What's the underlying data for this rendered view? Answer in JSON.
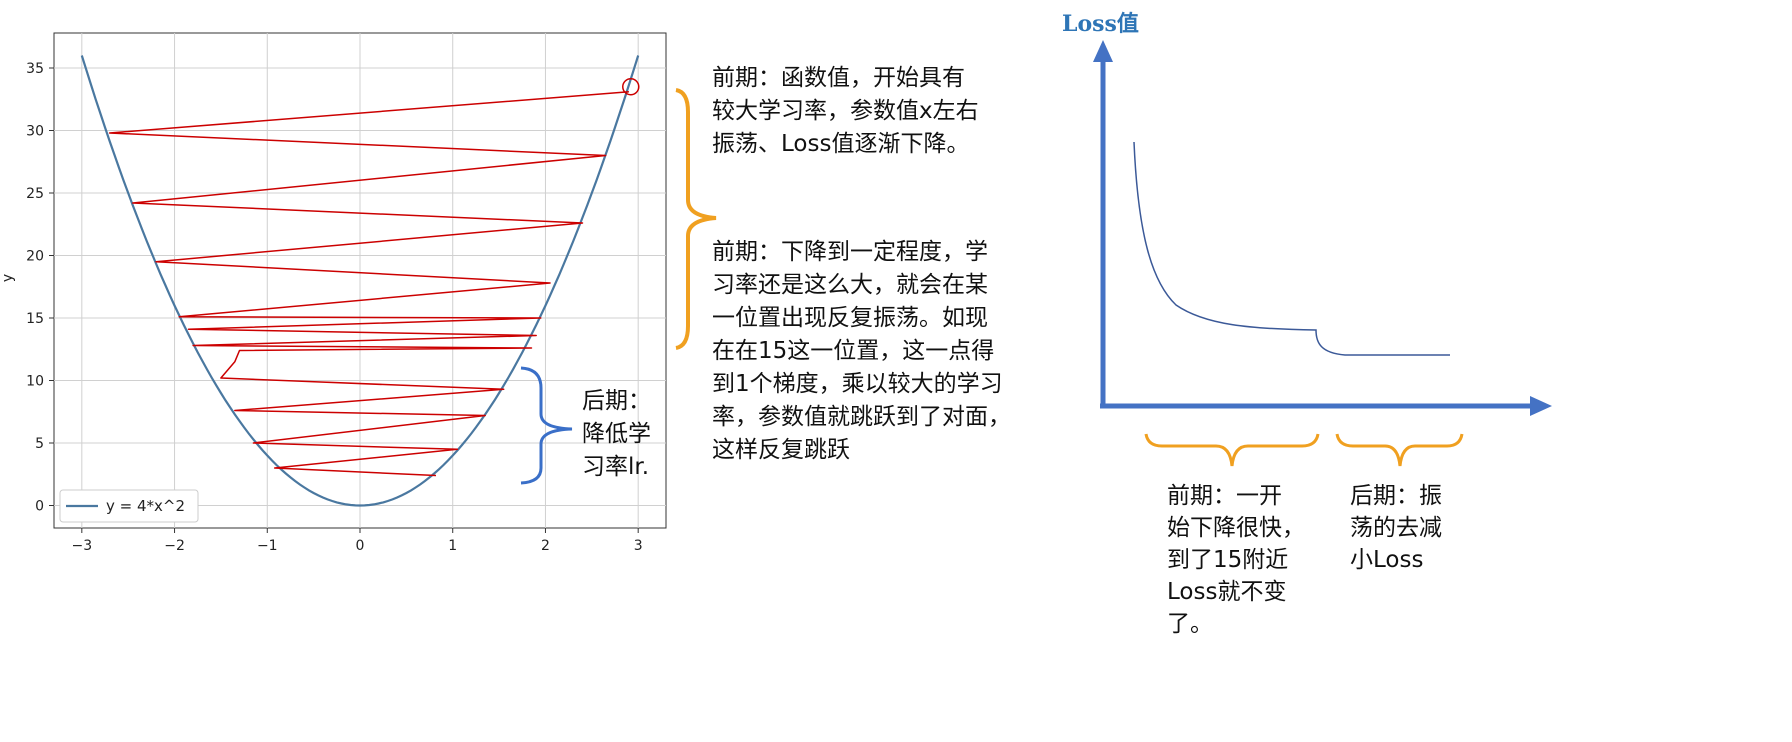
{
  "chart_data": {
    "type": "line",
    "ylabel": "y",
    "xlabel": "",
    "xlim": [
      -3.3,
      3.3
    ],
    "ylim": [
      -1.8,
      37.8
    ],
    "x_ticks": [
      -3,
      -2,
      -1,
      0,
      1,
      2,
      3
    ],
    "y_ticks": [
      0,
      5,
      10,
      15,
      20,
      25,
      30,
      35
    ],
    "grid": true,
    "legend_position": "lower-left",
    "series": [
      {
        "name": "y = 4*x^2",
        "function": "4*x^2",
        "x_range": [
          -3,
          3
        ],
        "color": "#4a78a0"
      }
    ],
    "oscillation_path": {
      "color": "#cc0000",
      "start_marker": {
        "x": 2.92,
        "y": 33.5
      },
      "points": [
        [
          2.9,
          33.1
        ],
        [
          -2.7,
          29.8
        ],
        [
          2.65,
          28.0
        ],
        [
          -2.45,
          24.2
        ],
        [
          2.4,
          22.6
        ],
        [
          -2.2,
          19.5
        ],
        [
          2.05,
          17.8
        ],
        [
          -1.95,
          15.1
        ],
        [
          1.95,
          15.0
        ],
        [
          -1.85,
          14.1
        ],
        [
          1.9,
          13.6
        ],
        [
          -1.8,
          12.8
        ],
        [
          1.85,
          12.6
        ],
        [
          -1.3,
          12.4
        ],
        [
          -1.35,
          11.5
        ],
        [
          -1.5,
          10.2
        ],
        [
          1.55,
          9.3
        ],
        [
          -1.35,
          7.6
        ],
        [
          1.35,
          7.2
        ],
        [
          -1.15,
          5.0
        ],
        [
          1.05,
          4.5
        ],
        [
          -0.92,
          3.0
        ],
        [
          0.82,
          2.4
        ]
      ]
    }
  },
  "annotations": {
    "early_phase_1": "前期：函数值，开始具有\n较大学习率，参数值x左右\n振荡、Loss值逐渐下降。",
    "early_phase_2": "前期：下降到一定程度，学\n习率还是这么大，就会在某\n一位置出现反复振荡。如现\n在在15这一位置，这一点得\n到1个梯度，乘以较大的学习\n率，参数值就跳跃到了对面，\n这样反复跳跃",
    "late_phase": "后期：\n降低学\n习率lr.",
    "loss_axis_label": "Loss值",
    "loss_early_note": "前期：一开\n始下降很快，\n到了15附近\nLoss就不变\n了。",
    "loss_late_note": "后期：振\n荡的去减\n小Loss"
  },
  "colors": {
    "parabola": "#4a78a0",
    "path": "#cc0000",
    "orange_brace": "#f0a020",
    "blue_brace": "#3a6fc8",
    "loss_axis": "#4472c4",
    "loss_curve": "#3b5998",
    "loss_label": "#2e75b6",
    "grid": "#d0d0d0"
  }
}
